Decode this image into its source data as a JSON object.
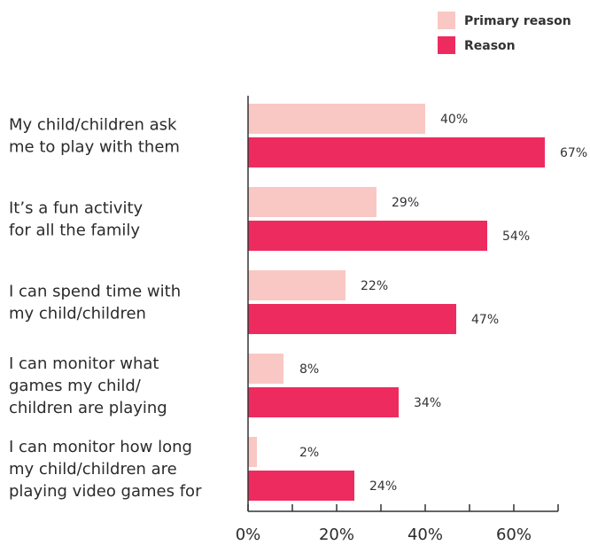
{
  "chart_data": {
    "type": "bar",
    "orientation": "horizontal",
    "categories": [
      [
        "My child/children ask",
        "me to play with them"
      ],
      [
        "It’s a fun activity",
        "for all the family"
      ],
      [
        "I can spend time with",
        "my child/children"
      ],
      [
        "I can monitor what",
        "games my child/",
        "children are playing"
      ],
      [
        "I can monitor how long",
        "my child/children are",
        "playing video games for"
      ]
    ],
    "series": [
      {
        "name": "Primary reason",
        "color": "#f9c8c4",
        "values": [
          40,
          29,
          22,
          8,
          2
        ],
        "labels": [
          "40%",
          "29%",
          "22%",
          "8%",
          "2%"
        ]
      },
      {
        "name": "Reason",
        "color": "#ee2b5f",
        "values": [
          67,
          54,
          47,
          34,
          24
        ],
        "labels": [
          "67%",
          "54%",
          "47%",
          "34%",
          "24%"
        ]
      }
    ],
    "xlim": [
      0,
      70
    ],
    "x_ticks": [
      0,
      20,
      40,
      60
    ],
    "x_tick_labels": [
      "0%",
      "20%",
      "40%",
      "60%"
    ],
    "legend_position": "top-right",
    "grid": false
  }
}
